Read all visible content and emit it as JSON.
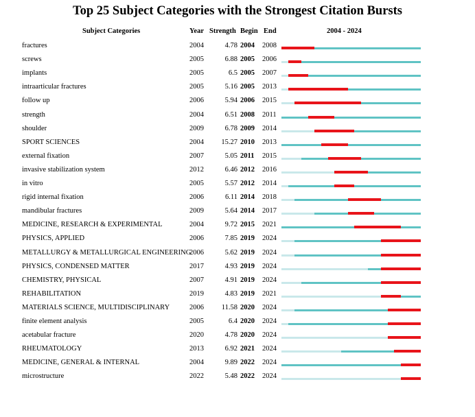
{
  "title": "Top 25 Subject Categories with the Strongest Citation Bursts",
  "headers": {
    "category": "Subject Categories",
    "year": "Year",
    "strength": "Strength",
    "begin": "Begin",
    "end": "End",
    "range": "2004 - 2024"
  },
  "colors": {
    "before": "#c9e8ea",
    "active": "#5fc3c4",
    "burst": "#e8141a"
  },
  "chart_data": {
    "type": "table",
    "range_start": 2004,
    "range_end": 2024,
    "rows": [
      {
        "category": "fractures",
        "year": 2004,
        "strength": "4.78",
        "begin": 2004,
        "end": 2008
      },
      {
        "category": "screws",
        "year": 2005,
        "strength": "6.88",
        "begin": 2005,
        "end": 2006
      },
      {
        "category": "implants",
        "year": 2005,
        "strength": "6.5",
        "begin": 2005,
        "end": 2007
      },
      {
        "category": "intraarticular fractures",
        "year": 2005,
        "strength": "5.16",
        "begin": 2005,
        "end": 2013
      },
      {
        "category": "follow up",
        "year": 2006,
        "strength": "5.94",
        "begin": 2006,
        "end": 2015
      },
      {
        "category": "strength",
        "year": 2004,
        "strength": "6.51",
        "begin": 2008,
        "end": 2011
      },
      {
        "category": "shoulder",
        "year": 2009,
        "strength": "6.78",
        "begin": 2009,
        "end": 2014
      },
      {
        "category": "SPORT SCIENCES",
        "year": 2004,
        "strength": "15.27",
        "begin": 2010,
        "end": 2013
      },
      {
        "category": "external fixation",
        "year": 2007,
        "strength": "5.05",
        "begin": 2011,
        "end": 2015
      },
      {
        "category": "invasive stabilization system",
        "year": 2012,
        "strength": "6.46",
        "begin": 2012,
        "end": 2016
      },
      {
        "category": "in vitro",
        "year": 2005,
        "strength": "5.57",
        "begin": 2012,
        "end": 2014
      },
      {
        "category": "rigid internal fixation",
        "year": 2006,
        "strength": "6.11",
        "begin": 2014,
        "end": 2018
      },
      {
        "category": "mandibular fractures",
        "year": 2009,
        "strength": "5.64",
        "begin": 2014,
        "end": 2017
      },
      {
        "category": "MEDICINE, RESEARCH & EXPERIMENTAL",
        "year": 2004,
        "strength": "9.72",
        "begin": 2015,
        "end": 2021
      },
      {
        "category": "PHYSICS, APPLIED",
        "year": 2006,
        "strength": "7.85",
        "begin": 2019,
        "end": 2024
      },
      {
        "category": "METALLURGY & METALLURGICAL ENGINEERING",
        "year": 2006,
        "strength": "5.62",
        "begin": 2019,
        "end": 2024
      },
      {
        "category": "PHYSICS, CONDENSED MATTER",
        "year": 2017,
        "strength": "4.93",
        "begin": 2019,
        "end": 2024
      },
      {
        "category": "CHEMISTRY, PHYSICAL",
        "year": 2007,
        "strength": "4.91",
        "begin": 2019,
        "end": 2024
      },
      {
        "category": "REHABILITATION",
        "year": 2019,
        "strength": "4.83",
        "begin": 2019,
        "end": 2021
      },
      {
        "category": "MATERIALS SCIENCE, MULTIDISCIPLINARY",
        "year": 2006,
        "strength": "11.58",
        "begin": 2020,
        "end": 2024
      },
      {
        "category": "finite element analysis",
        "year": 2005,
        "strength": "6.4",
        "begin": 2020,
        "end": 2024
      },
      {
        "category": "acetabular fracture",
        "year": 2020,
        "strength": "4.78",
        "begin": 2020,
        "end": 2024
      },
      {
        "category": "RHEUMATOLOGY",
        "year": 2013,
        "strength": "6.92",
        "begin": 2021,
        "end": 2024
      },
      {
        "category": "MEDICINE, GENERAL & INTERNAL",
        "year": 2004,
        "strength": "9.89",
        "begin": 2022,
        "end": 2024
      },
      {
        "category": "microstructure",
        "year": 2022,
        "strength": "5.48",
        "begin": 2022,
        "end": 2024
      }
    ]
  }
}
